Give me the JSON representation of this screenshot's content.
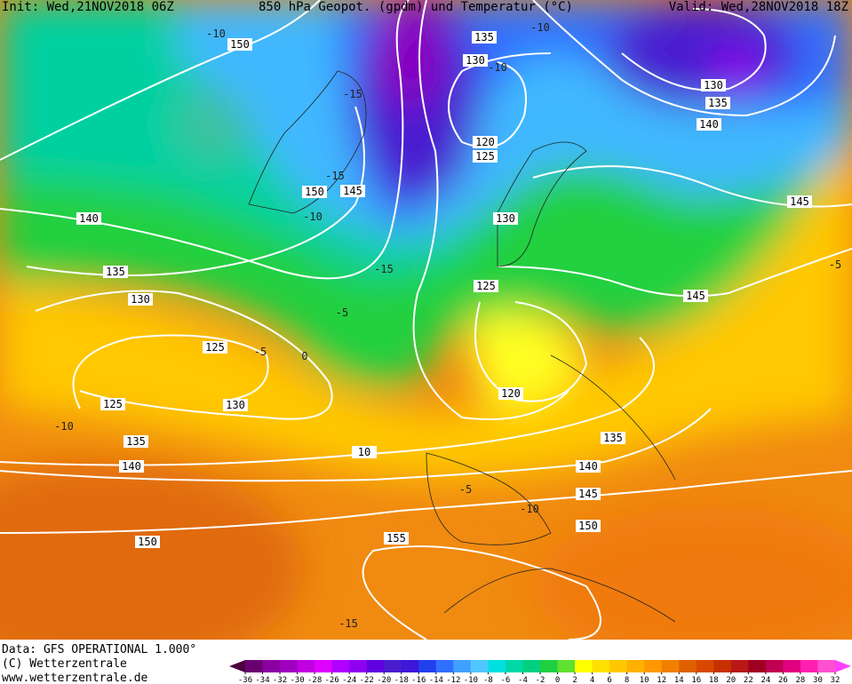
{
  "header": {
    "init": "Init: Wed,21NOV2018 06Z",
    "title": "850 hPa Geopot. (gpdm) und Temperatur (°C)",
    "valid": "Valid: Wed,28NOV2018 18Z"
  },
  "footer": {
    "data": "Data: GFS OPERATIONAL 1.000°",
    "copyright": "(C) Wetterzentrale",
    "url": "www.wetterzentrale.de"
  },
  "legend": {
    "ticks": [
      -36,
      -34,
      -32,
      -30,
      -28,
      -26,
      -24,
      -22,
      -20,
      -18,
      -16,
      -14,
      -12,
      -10,
      -8,
      -6,
      -4,
      -2,
      0,
      2,
      4,
      6,
      8,
      10,
      12,
      14,
      16,
      18,
      20,
      22,
      24,
      26,
      28,
      30,
      32
    ],
    "colors": [
      "#4b0040",
      "#6a0070",
      "#8a00a0",
      "#a000c0",
      "#c000e0",
      "#e000ff",
      "#b000ff",
      "#9000f0",
      "#6000e0",
      "#4a1cd0",
      "#3c18d8",
      "#2040f0",
      "#3070ff",
      "#40a0ff",
      "#50c8ff",
      "#00e0e0",
      "#00d8a8",
      "#00d080",
      "#20d040",
      "#60e030",
      "#ffff00",
      "#ffe000",
      "#ffc800",
      "#ffb000",
      "#ff9800",
      "#f08000",
      "#e06000",
      "#d84800",
      "#c83000",
      "#b81818",
      "#a00020",
      "#c00050",
      "#e00080",
      "#ff20b0",
      "#ff50d0",
      "#ff40ff"
    ]
  },
  "geopotential_labels": [
    "150",
    "140",
    "135",
    "130",
    "125",
    "125",
    "130",
    "135",
    "140",
    "150",
    "155",
    "135",
    "130",
    "120",
    "125",
    "150",
    "145",
    "130",
    "125",
    "120",
    "135",
    "140",
    "145",
    "150",
    "145",
    "145",
    "140",
    "135",
    "130",
    "10"
  ],
  "temperature_labels": [
    "-10",
    "-10",
    "-15",
    "-15",
    "-10",
    "-15",
    "-5",
    "0",
    "-5",
    "-10",
    "-5",
    "-10",
    "-15",
    "-5",
    "-10"
  ]
}
